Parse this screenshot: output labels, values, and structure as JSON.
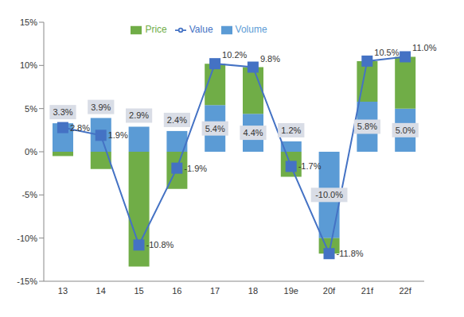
{
  "chart_data": {
    "type": "bar",
    "stacked": true,
    "grid": false,
    "legend": "top",
    "categories": [
      "13",
      "14",
      "15",
      "16",
      "17",
      "18",
      "19e",
      "20f",
      "21f",
      "22f"
    ],
    "ylim": [
      -15,
      15
    ],
    "yticks": [
      {
        "value": -15,
        "label": "-15%"
      },
      {
        "value": -10,
        "label": "-10%"
      },
      {
        "value": -5,
        "label": "-5%"
      },
      {
        "value": 0,
        "label": "0%"
      },
      {
        "value": 5,
        "label": "5%"
      },
      {
        "value": 10,
        "label": "10%"
      },
      {
        "value": 15,
        "label": "15%"
      }
    ],
    "series": [
      {
        "name": "Volume",
        "type": "bar",
        "color": "#5b9bd5",
        "data_labels": true,
        "values": [
          3.3,
          3.9,
          2.9,
          2.4,
          5.4,
          4.4,
          1.2,
          -10.0,
          5.8,
          5.0
        ],
        "value_labels": [
          "3.3%",
          "3.9%",
          "2.9%",
          "2.4%",
          "5.4%",
          "4.4%",
          "1.2%",
          "-10.0%",
          "5.8%",
          "5.0%"
        ]
      },
      {
        "name": "Price",
        "type": "bar",
        "color": "#70ad47",
        "values": [
          -0.5,
          -2.0,
          -13.3,
          -4.3,
          4.8,
          5.4,
          -2.9,
          -1.8,
          4.7,
          6.0
        ]
      },
      {
        "name": "Value",
        "type": "line",
        "color": "#4472c4",
        "marker": "square",
        "data_labels": true,
        "values": [
          2.8,
          1.9,
          -10.8,
          -1.9,
          10.2,
          9.8,
          -1.7,
          -11.8,
          10.5,
          11.0
        ],
        "value_labels": [
          "2.8%",
          "1.9%",
          "-10.8%",
          "-1.9%",
          "10.2%",
          "9.8%",
          "-1.7%",
          "-11.8%",
          "10.5%",
          "11.0%"
        ]
      }
    ]
  }
}
